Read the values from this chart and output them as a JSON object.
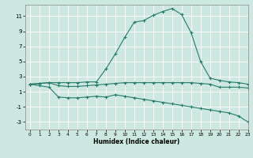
{
  "bg_color": "#cce8e0",
  "grid_color": "#ffffff",
  "line_color": "#2a7a6a",
  "xlabel": "Humidex (Indice chaleur)",
  "xlim": [
    -0.5,
    23
  ],
  "ylim": [
    -4,
    12.5
  ],
  "yticks": [
    -3,
    -1,
    1,
    3,
    5,
    7,
    9,
    11
  ],
  "xticks": [
    0,
    1,
    2,
    3,
    4,
    5,
    6,
    7,
    8,
    9,
    10,
    11,
    12,
    13,
    14,
    15,
    16,
    17,
    18,
    19,
    20,
    21,
    22,
    23
  ],
  "line1_x": [
    0,
    1,
    2,
    3,
    4,
    5,
    6,
    7,
    8,
    9,
    10,
    11,
    12,
    13,
    14,
    15,
    16,
    17,
    18,
    19,
    20,
    21,
    22,
    23
  ],
  "line1_y": [
    2.0,
    2.1,
    2.2,
    2.2,
    2.2,
    2.2,
    2.3,
    2.3,
    4.0,
    6.0,
    8.2,
    10.2,
    10.4,
    11.1,
    11.6,
    12.0,
    11.2,
    8.8,
    5.0,
    2.8,
    2.5,
    2.3,
    2.2,
    2.0
  ],
  "line2_x": [
    0,
    1,
    2,
    3,
    4,
    5,
    6,
    7,
    8,
    9,
    10,
    11,
    12,
    13,
    14,
    15,
    16,
    17,
    18,
    19,
    20,
    21,
    22,
    23
  ],
  "line2_y": [
    2.0,
    2.1,
    2.2,
    1.8,
    1.7,
    1.7,
    1.8,
    1.9,
    2.0,
    2.1,
    2.2,
    2.2,
    2.2,
    2.2,
    2.2,
    2.2,
    2.2,
    2.2,
    2.1,
    2.0,
    1.6,
    1.6,
    1.6,
    1.5
  ],
  "line3_x": [
    0,
    1,
    2,
    3,
    4,
    5,
    6,
    7,
    8,
    9,
    10,
    11,
    12,
    13,
    14,
    15,
    16,
    17,
    18,
    19,
    20,
    21,
    22,
    23
  ],
  "line3_y": [
    2.0,
    1.8,
    1.6,
    0.3,
    0.2,
    0.2,
    0.3,
    0.4,
    0.3,
    0.6,
    0.4,
    0.2,
    0.0,
    -0.2,
    -0.4,
    -0.6,
    -0.8,
    -1.0,
    -1.2,
    -1.4,
    -1.6,
    -1.8,
    -2.2,
    -3.0
  ],
  "xlabel_fontsize": 5.5,
  "tick_fontsize_x": 4.2,
  "tick_fontsize_y": 5.0
}
